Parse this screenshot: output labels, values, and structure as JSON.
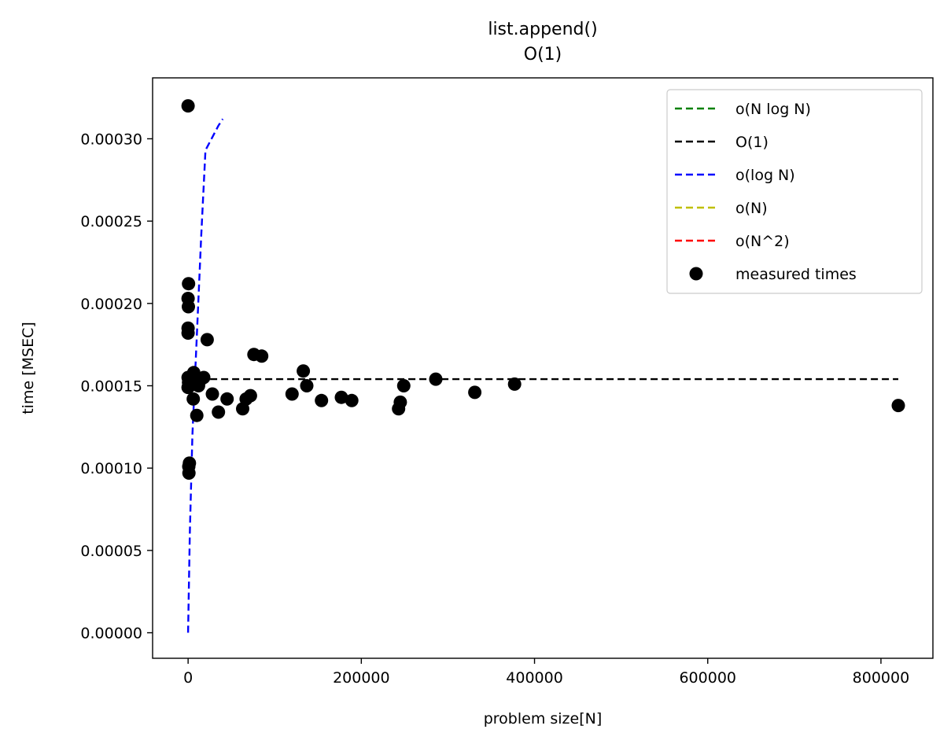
{
  "chart_data": {
    "type": "scatter",
    "title": "list.append()",
    "subtitle": "O(1)",
    "xlabel": "problem size[N]",
    "ylabel": "time [MSEC]",
    "xlim": [
      -41000,
      860000
    ],
    "ylim": [
      -1.55e-05,
      0.000337
    ],
    "xticks": [
      0,
      200000,
      400000,
      600000,
      800000
    ],
    "xtick_labels": [
      "0",
      "200000",
      "400000",
      "600000",
      "800000"
    ],
    "yticks": [
      0,
      5e-05,
      0.0001,
      0.00015,
      0.0002,
      0.00025,
      0.0003
    ],
    "ytick_labels": [
      "0.00000",
      "0.00005",
      "0.00010",
      "0.00015",
      "0.00020",
      "0.00025",
      "0.00030"
    ],
    "grid": false,
    "legend_position": "top-right",
    "legend": [
      {
        "label": "o(N log N)",
        "color": "#008000",
        "style": "dashed"
      },
      {
        "label": "O(1)",
        "color": "#000000",
        "style": "dashed"
      },
      {
        "label": "o(log N)",
        "color": "#0000ff",
        "style": "dashed"
      },
      {
        "label": "o(N)",
        "color": "#bfbf00",
        "style": "dashed"
      },
      {
        "label": "o(N^2)",
        "color": "#ff0000",
        "style": "dashed"
      },
      {
        "label": "measured times",
        "color": "#000000",
        "style": "marker"
      }
    ],
    "lines": [
      {
        "label": "O(1)",
        "color": "#000000",
        "x": [
          0,
          820000
        ],
        "y": [
          0.000154,
          0.000154
        ]
      },
      {
        "label": "o(log N)",
        "color": "#0000ff",
        "x": [
          0,
          2000,
          5000,
          10000,
          15000,
          20000,
          25000,
          30000,
          35000,
          40000
        ],
        "y": [
          0.0,
          6e-05,
          0.00012,
          0.00018,
          0.00024,
          0.000293,
          0.000298,
          0.000303,
          0.000308,
          0.000312
        ]
      }
    ],
    "points": {
      "label": "measured times",
      "color": "#000000",
      "x": [
        0,
        0,
        0,
        0,
        0,
        0,
        500,
        300,
        500,
        800,
        1000,
        1500,
        2000,
        2500,
        3000,
        5000,
        6000,
        6500,
        8000,
        10000,
        12000,
        15000,
        18000,
        22000,
        28000,
        35000,
        45000,
        63000,
        67000,
        72000,
        76000,
        85000,
        120000,
        133000,
        137000,
        154000,
        177000,
        189000,
        243000,
        245000,
        249000,
        286000,
        331000,
        377000,
        820000
      ],
      "y": [
        0.00032,
        0.000203,
        0.000185,
        0.000182,
        0.000155,
        0.000149,
        0.000212,
        0.000198,
        0.000152,
        0.000101,
        9.7e-05,
        0.000103,
        0.00015,
        0.000154,
        0.000155,
        0.000154,
        0.000142,
        0.000158,
        0.000155,
        0.000132,
        0.00015,
        0.000154,
        0.000155,
        0.000178,
        0.000145,
        0.000134,
        0.000142,
        0.000136,
        0.000142,
        0.000144,
        0.000169,
        0.000168,
        0.000145,
        0.000159,
        0.00015,
        0.000141,
        0.000143,
        0.000141,
        0.000136,
        0.00014,
        0.00015,
        0.000154,
        0.000146,
        0.000151,
        0.000138
      ]
    }
  }
}
